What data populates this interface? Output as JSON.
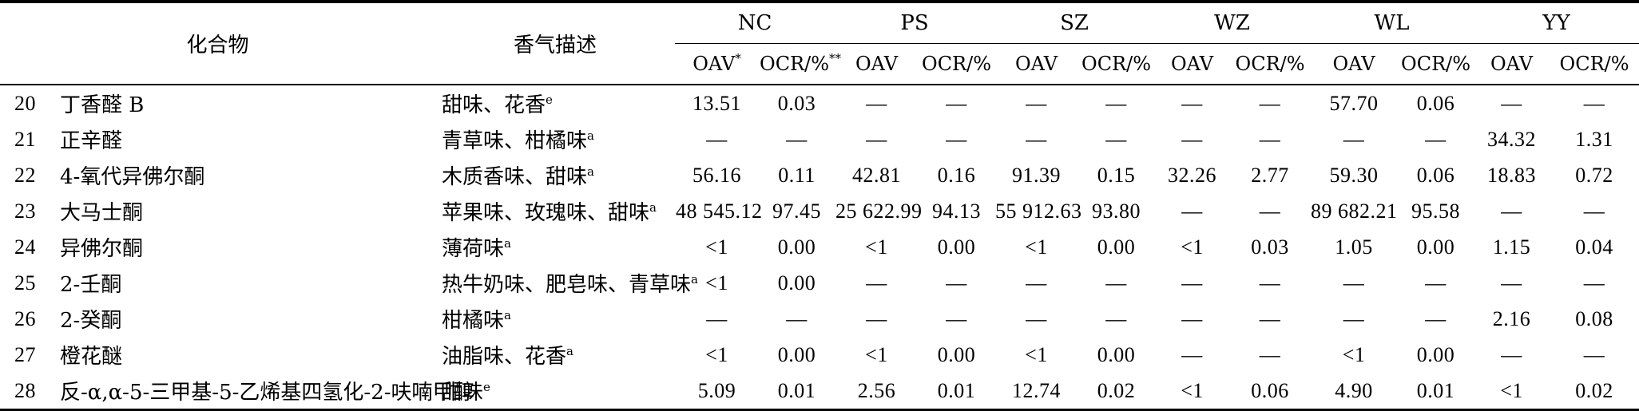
{
  "header": {
    "compound": "化合物",
    "aroma": "香气描述",
    "groups": [
      "NC",
      "PS",
      "SZ",
      "WZ",
      "WL",
      "YY"
    ],
    "sub": [
      {
        "text": "OAV",
        "sup": "*"
      },
      {
        "text": "OCR/%",
        "sup": "**"
      },
      {
        "text": "OAV",
        "sup": ""
      },
      {
        "text": "OCR/%",
        "sup": ""
      },
      {
        "text": "OAV",
        "sup": ""
      },
      {
        "text": "OCR/%",
        "sup": ""
      },
      {
        "text": "OAV",
        "sup": ""
      },
      {
        "text": "OCR/%",
        "sup": ""
      },
      {
        "text": "OAV",
        "sup": ""
      },
      {
        "text": "OCR/%",
        "sup": ""
      },
      {
        "text": "OAV",
        "sup": ""
      },
      {
        "text": "OCR/%",
        "sup": ""
      }
    ]
  },
  "rows": [
    {
      "no": "20",
      "name": "丁香醛 B",
      "desc": "甜味、花香",
      "sup": "e",
      "vals": [
        "13.51",
        "0.03",
        "—",
        "—",
        "—",
        "—",
        "—",
        "—",
        "57.70",
        "0.06",
        "—",
        "—"
      ]
    },
    {
      "no": "21",
      "name": "正辛醛",
      "desc": "青草味、柑橘味",
      "sup": "a",
      "vals": [
        "—",
        "—",
        "—",
        "—",
        "—",
        "—",
        "—",
        "—",
        "—",
        "—",
        "34.32",
        "1.31"
      ]
    },
    {
      "no": "22",
      "name": "4-氧代异佛尔酮",
      "desc": "木质香味、甜味",
      "sup": "a",
      "vals": [
        "56.16",
        "0.11",
        "42.81",
        "0.16",
        "91.39",
        "0.15",
        "32.26",
        "2.77",
        "59.30",
        "0.06",
        "18.83",
        "0.72"
      ]
    },
    {
      "no": "23",
      "name": "大马士酮",
      "desc": "苹果味、玫瑰味、甜味",
      "sup": "a",
      "vals": [
        "48 545.12",
        "97.45",
        "25 622.99",
        "94.13",
        "55 912.63",
        "93.80",
        "—",
        "—",
        "89 682.21",
        "95.58",
        "—",
        "—"
      ]
    },
    {
      "no": "24",
      "name": "异佛尔酮",
      "desc": "薄荷味",
      "sup": "a",
      "vals": [
        "<1",
        "0.00",
        "<1",
        "0.00",
        "<1",
        "0.00",
        "<1",
        "0.03",
        "1.05",
        "0.00",
        "1.15",
        "0.04"
      ]
    },
    {
      "no": "25",
      "name": "2-壬酮",
      "desc": "热牛奶味、肥皂味、青草味",
      "sup": "a",
      "vals": [
        "<1",
        "0.00",
        "—",
        "—",
        "—",
        "—",
        "—",
        "—",
        "—",
        "—",
        "—",
        "—"
      ]
    },
    {
      "no": "26",
      "name": "2-癸酮",
      "desc": "柑橘味",
      "sup": "a",
      "vals": [
        "—",
        "—",
        "—",
        "—",
        "—",
        "—",
        "—",
        "—",
        "—",
        "—",
        "2.16",
        "0.08"
      ]
    },
    {
      "no": "27",
      "name": "橙花醚",
      "desc": "油脂味、花香",
      "sup": "a",
      "vals": [
        "<1",
        "0.00",
        "<1",
        "0.00",
        "<1",
        "0.00",
        "—",
        "—",
        "<1",
        "0.00",
        "—",
        "—"
      ]
    },
    {
      "no": "28",
      "name": "反-α,α-5-三甲基-5-乙烯基四氢化-2-呋喃甲醇",
      "desc": "甜味",
      "sup": "e",
      "vals": [
        "5.09",
        "0.01",
        "2.56",
        "0.01",
        "12.74",
        "0.02",
        "<1",
        "0.06",
        "4.90",
        "0.01",
        "<1",
        "0.02"
      ]
    }
  ]
}
